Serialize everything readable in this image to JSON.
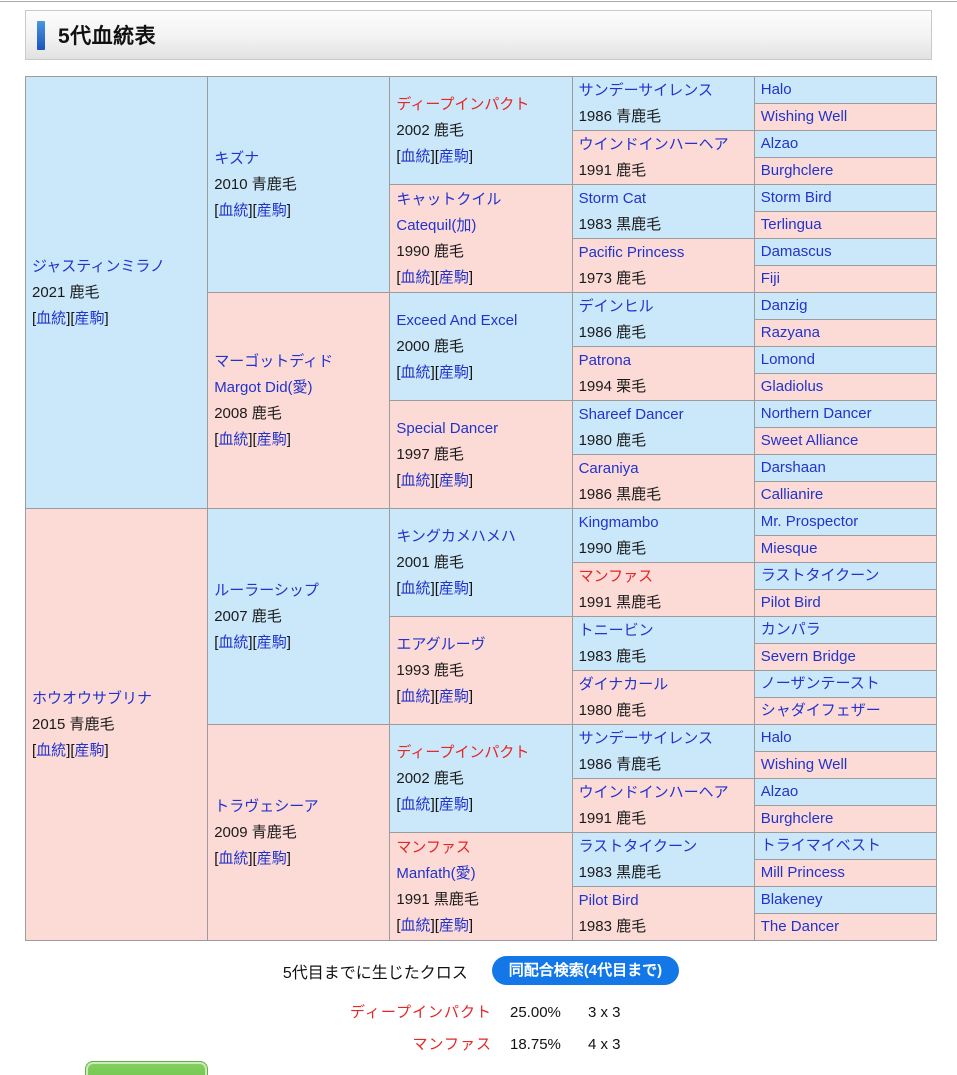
{
  "page": {
    "title": "5代血統表"
  },
  "link_labels": {
    "blood": "血統",
    "offspring": "産駒",
    "bracket_open": "[",
    "bracket_close": "]"
  },
  "pedigree": {
    "gen1": [
      {
        "name": "ジャスティンミラノ",
        "info": "2021 鹿毛",
        "links": true,
        "bg": "blue"
      },
      {
        "name": "ホウオウサブリナ",
        "info": "2015 青鹿毛",
        "links": true,
        "bg": "pink"
      }
    ],
    "gen2": [
      {
        "name": "キズナ",
        "info": "2010 青鹿毛",
        "links": true,
        "bg": "blue"
      },
      {
        "name": "マーゴットディド",
        "sub": "Margot Did(愛)",
        "info": "2008 鹿毛",
        "links": true,
        "bg": "pink"
      },
      {
        "name": "ルーラーシップ",
        "info": "2007 鹿毛",
        "links": true,
        "bg": "blue"
      },
      {
        "name": "トラヴェシーア",
        "info": "2009 青鹿毛",
        "links": true,
        "bg": "pink"
      }
    ],
    "gen3": [
      {
        "name": "ディープインパクト",
        "highlight": true,
        "info": "2002 鹿毛",
        "links": true,
        "bg": "blue"
      },
      {
        "name": "キャットクイル",
        "sub": "Catequil(加)",
        "info": "1990 鹿毛",
        "links": true,
        "bg": "pink"
      },
      {
        "name": "Exceed And Excel",
        "info": "2000 鹿毛",
        "links": true,
        "bg": "blue"
      },
      {
        "name": "Special Dancer",
        "info": "1997 鹿毛",
        "links": true,
        "bg": "pink"
      },
      {
        "name": "キングカメハメハ",
        "info": "2001 鹿毛",
        "links": true,
        "bg": "blue"
      },
      {
        "name": "エアグルーヴ",
        "info": "1993 鹿毛",
        "links": true,
        "bg": "pink"
      },
      {
        "name": "ディープインパクト",
        "highlight": true,
        "info": "2002 鹿毛",
        "links": true,
        "bg": "blue"
      },
      {
        "name": "マンファス",
        "highlight": true,
        "sub": "Manfath(愛)",
        "info": "1991 黒鹿毛",
        "links": true,
        "bg": "pink"
      }
    ],
    "gen4": [
      {
        "name": "サンデーサイレンス",
        "info": "1986 青鹿毛",
        "bg": "blue"
      },
      {
        "name": "ウインドインハーヘア",
        "info": "1991 鹿毛",
        "bg": "pink"
      },
      {
        "name": "Storm Cat",
        "info": "1983 黒鹿毛",
        "bg": "blue"
      },
      {
        "name": "Pacific Princess",
        "info": "1973 鹿毛",
        "bg": "pink"
      },
      {
        "name": "デインヒル",
        "info": "1986 鹿毛",
        "bg": "blue"
      },
      {
        "name": "Patrona",
        "info": "1994 栗毛",
        "bg": "pink"
      },
      {
        "name": "Shareef Dancer",
        "info": "1980 鹿毛",
        "bg": "blue"
      },
      {
        "name": "Caraniya",
        "info": "1986 黒鹿毛",
        "bg": "pink"
      },
      {
        "name": "Kingmambo",
        "info": "1990 鹿毛",
        "bg": "blue"
      },
      {
        "name": "マンファス",
        "highlight": true,
        "info": "1991 黒鹿毛",
        "bg": "pink"
      },
      {
        "name": "トニービン",
        "info": "1983 鹿毛",
        "bg": "blue"
      },
      {
        "name": "ダイナカール",
        "info": "1980 鹿毛",
        "bg": "pink"
      },
      {
        "name": "サンデーサイレンス",
        "info": "1986 青鹿毛",
        "bg": "blue"
      },
      {
        "name": "ウインドインハーヘア",
        "info": "1991 鹿毛",
        "bg": "pink"
      },
      {
        "name": "ラストタイクーン",
        "info": "1983 黒鹿毛",
        "bg": "blue"
      },
      {
        "name": "Pilot Bird",
        "info": "1983 鹿毛",
        "bg": "pink"
      }
    ],
    "gen5": [
      {
        "name": "Halo",
        "bg": "blue"
      },
      {
        "name": "Wishing Well",
        "bg": "pink"
      },
      {
        "name": "Alzao",
        "bg": "blue"
      },
      {
        "name": "Burghclere",
        "bg": "pink"
      },
      {
        "name": "Storm Bird",
        "bg": "blue"
      },
      {
        "name": "Terlingua",
        "bg": "pink"
      },
      {
        "name": "Damascus",
        "bg": "blue"
      },
      {
        "name": "Fiji",
        "bg": "pink"
      },
      {
        "name": "Danzig",
        "bg": "blue"
      },
      {
        "name": "Razyana",
        "bg": "pink"
      },
      {
        "name": "Lomond",
        "bg": "blue"
      },
      {
        "name": "Gladiolus",
        "bg": "pink"
      },
      {
        "name": "Northern Dancer",
        "bg": "blue"
      },
      {
        "name": "Sweet Alliance",
        "bg": "pink"
      },
      {
        "name": "Darshaan",
        "bg": "blue"
      },
      {
        "name": "Callianire",
        "bg": "pink"
      },
      {
        "name": "Mr. Prospector",
        "bg": "blue"
      },
      {
        "name": "Miesque",
        "bg": "pink"
      },
      {
        "name": "ラストタイクーン",
        "bg": "blue"
      },
      {
        "name": "Pilot Bird",
        "bg": "pink"
      },
      {
        "name": "カンパラ",
        "bg": "blue"
      },
      {
        "name": "Severn Bridge",
        "bg": "pink"
      },
      {
        "name": "ノーザンテースト",
        "bg": "blue"
      },
      {
        "name": "シャダイフェザー",
        "bg": "pink"
      },
      {
        "name": "Halo",
        "bg": "blue"
      },
      {
        "name": "Wishing Well",
        "bg": "pink"
      },
      {
        "name": "Alzao",
        "bg": "blue"
      },
      {
        "name": "Burghclere",
        "bg": "pink"
      },
      {
        "name": "トライマイベスト",
        "bg": "blue"
      },
      {
        "name": "Mill Princess",
        "bg": "pink"
      },
      {
        "name": "Blakeney",
        "bg": "blue"
      },
      {
        "name": "The Dancer",
        "bg": "pink"
      }
    ]
  },
  "cross_section": {
    "label": "5代目までに生じたクロス",
    "search_button_label": "同配合検索(4代目まで)",
    "crosses": [
      {
        "name": "ディープインパクト",
        "percent": "25.00%",
        "pattern": "3 x 3"
      },
      {
        "name": "マンファス",
        "percent": "18.75%",
        "pattern": "4 x 3"
      }
    ]
  },
  "colors": {
    "sire_cell_blue": "#cae8fa",
    "dam_cell_pink": "#fcdbd7",
    "link_blue": "#2233cc",
    "cross_highlight_red": "#e62525",
    "search_button_blue": "#1377e8",
    "green_button": "#6cc24a",
    "accent_bar_blue": "#2b6bd0"
  }
}
